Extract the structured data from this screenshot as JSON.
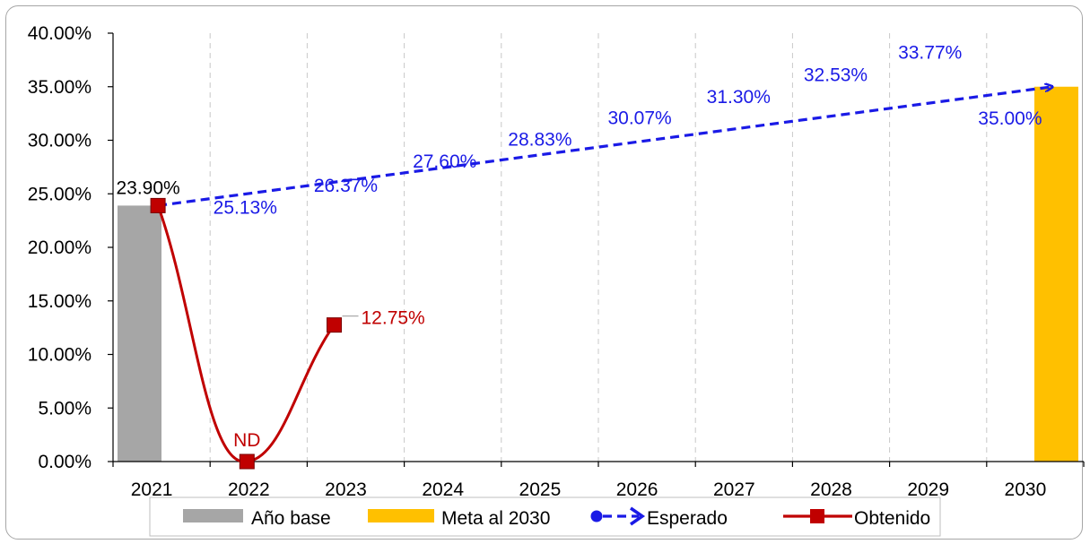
{
  "chart_data": {
    "type": "bar",
    "categories": [
      "2021",
      "2022",
      "2023",
      "2024",
      "2025",
      "2026",
      "2027",
      "2028",
      "2029",
      "2030"
    ],
    "ylim": [
      0,
      40
    ],
    "yticks": [
      0,
      5,
      10,
      15,
      20,
      25,
      30,
      35,
      40
    ],
    "ytick_labels": [
      "0.00%",
      "5.00%",
      "10.00%",
      "15.00%",
      "20.00%",
      "25.00%",
      "30.00%",
      "35.00%",
      "40.00%"
    ],
    "grid": "vertical dashed",
    "legend_position": "bottom",
    "series": [
      {
        "name": "Año base",
        "type": "bar",
        "color": "#a6a6a6",
        "values": [
          23.9,
          null,
          null,
          null,
          null,
          null,
          null,
          null,
          null,
          null
        ],
        "labels": [
          "23.90%",
          "",
          "",
          "",
          "",
          "",
          "",
          "",
          "",
          ""
        ]
      },
      {
        "name": "Meta al 2030",
        "type": "bar",
        "color": "#ffc000",
        "values": [
          null,
          null,
          null,
          null,
          null,
          null,
          null,
          null,
          null,
          35.0
        ],
        "labels": [
          "",
          "",
          "",
          "",
          "",
          "",
          "",
          "",
          "",
          ""
        ]
      },
      {
        "name": "Esperado",
        "type": "line",
        "style": "dashed-arrow",
        "color": "#1a1ae6",
        "values": [
          23.9,
          25.13,
          26.37,
          27.6,
          28.83,
          30.07,
          31.3,
          32.53,
          33.77,
          35.0
        ],
        "labels": [
          "",
          "25.13%",
          "26.37%",
          "27.60%",
          "28.83%",
          "30.07%",
          "31.30%",
          "32.53%",
          "33.77%",
          "35.00%"
        ]
      },
      {
        "name": "Obtenido",
        "type": "line",
        "style": "smooth-square-markers",
        "color": "#c00000",
        "values": [
          23.9,
          0,
          12.75,
          null,
          null,
          null,
          null,
          null,
          null,
          null
        ],
        "labels": [
          "",
          "ND",
          "12.75%",
          "",
          "",
          "",
          "",
          "",
          "",
          ""
        ]
      }
    ],
    "base_label": "23.90%"
  }
}
